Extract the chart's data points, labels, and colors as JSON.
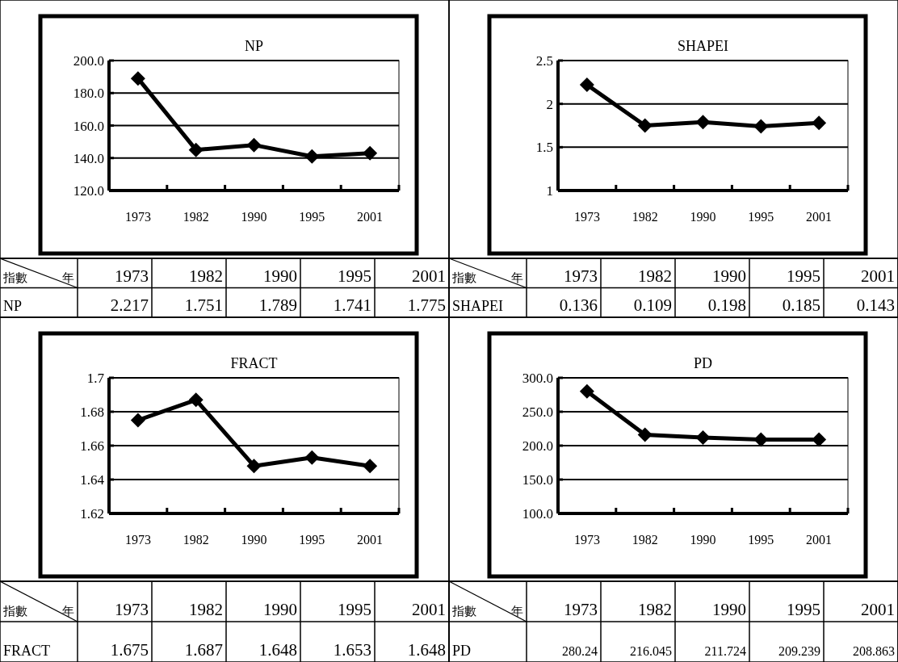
{
  "chart_data": [
    {
      "type": "line",
      "title": "NP",
      "categories": [
        "1973",
        "1982",
        "1990",
        "1995",
        "2001"
      ],
      "values": [
        189,
        145,
        148,
        141,
        143
      ],
      "color": "#000000",
      "marker": "diamond",
      "grid": "y",
      "ylim": [
        120,
        200
      ],
      "yticks": [
        {
          "value": 120,
          "label": "120.0"
        },
        {
          "value": 140,
          "label": "140.0"
        },
        {
          "value": 160,
          "label": "160.0"
        },
        {
          "value": 180,
          "label": "180.0"
        },
        {
          "value": 200,
          "label": "200.0"
        }
      ]
    },
    {
      "type": "line",
      "title": "SHAPEI",
      "categories": [
        "1973",
        "1982",
        "1990",
        "1995",
        "2001"
      ],
      "values": [
        2.22,
        1.75,
        1.79,
        1.74,
        1.78
      ],
      "color": "#000000",
      "marker": "diamond",
      "grid": "y",
      "ylim": [
        1,
        2.5
      ],
      "yticks": [
        1,
        1.5,
        2,
        2.5
      ]
    },
    {
      "type": "other",
      "annotations": [
        "指數",
        "年",
        "1973",
        "1982",
        "1990",
        "1995",
        "2001",
        "NP",
        "2.217",
        "1.751",
        "1.789",
        "1.741",
        "1.775"
      ]
    },
    {
      "type": "other",
      "annotations": [
        "指數",
        "年",
        "1973",
        "1982",
        "1990",
        "1995",
        "2001",
        "SHAPEI",
        "0.136",
        "0.109",
        "0.198",
        "0.185",
        "0.143"
      ]
    },
    {
      "type": "line",
      "title": "FRACT",
      "categories": [
        "1973",
        "1982",
        "1990",
        "1995",
        "2001"
      ],
      "values": [
        1.675,
        1.687,
        1.648,
        1.653,
        1.648
      ],
      "color": "#000000",
      "marker": "diamond",
      "grid": "y",
      "ylim": [
        1.62,
        1.7
      ],
      "yticks": [
        1.62,
        1.64,
        1.66,
        1.68,
        1.7
      ]
    },
    {
      "type": "line",
      "title": "PD",
      "categories": [
        "1973",
        "1982",
        "1990",
        "1995",
        "2001"
      ],
      "values": [
        280,
        216,
        212,
        209,
        209
      ],
      "color": "#000000",
      "marker": "diamond",
      "grid": "y",
      "ylim": [
        100,
        300
      ],
      "yticks": [
        {
          "value": 100,
          "label": "100.0"
        },
        {
          "value": 150,
          "label": "150.0"
        },
        {
          "value": 200,
          "label": "200.0"
        },
        {
          "value": 250,
          "label": "250.0"
        },
        {
          "value": 300,
          "label": "300.0"
        }
      ]
    },
    {
      "type": "other",
      "annotations": [
        "指數",
        "年",
        "1973",
        "1982",
        "1990",
        "1995",
        "2001",
        "FRACT",
        "1.675",
        "1.687",
        "1.648",
        "1.653",
        "1.648"
      ]
    },
    {
      "type": "other",
      "annotations": [
        "指數",
        "年",
        "1973",
        "1982",
        "1990",
        "1995",
        "2001",
        "PD",
        "280.24",
        "216.045",
        "211.724",
        "209.239",
        "208.863"
      ]
    }
  ]
}
